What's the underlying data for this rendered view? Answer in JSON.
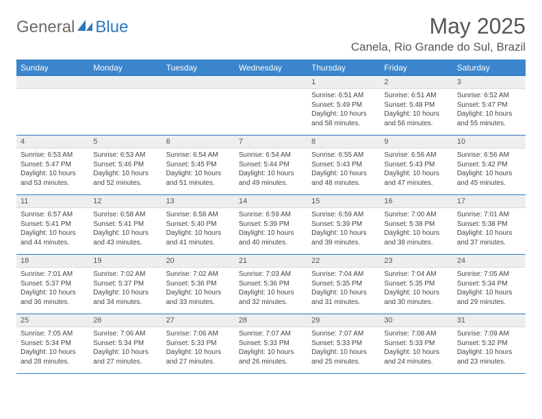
{
  "logo": {
    "part1": "General",
    "part2": "Blue"
  },
  "title": "May 2025",
  "location": "Canela, Rio Grande do Sul, Brazil",
  "colors": {
    "header_bg": "#3a85cc",
    "header_border": "#2b77c0",
    "daynum_bg": "#eceef0",
    "text": "#555555",
    "body_text": "#444444",
    "logo_gray": "#6a6a6a",
    "logo_blue": "#2b77c0"
  },
  "weekdays": [
    "Sunday",
    "Monday",
    "Tuesday",
    "Wednesday",
    "Thursday",
    "Friday",
    "Saturday"
  ],
  "weeks": [
    [
      null,
      null,
      null,
      null,
      {
        "n": "1",
        "sr": "6:51 AM",
        "ss": "5:49 PM",
        "dl": "10 hours and 58 minutes."
      },
      {
        "n": "2",
        "sr": "6:51 AM",
        "ss": "5:48 PM",
        "dl": "10 hours and 56 minutes."
      },
      {
        "n": "3",
        "sr": "6:52 AM",
        "ss": "5:47 PM",
        "dl": "10 hours and 55 minutes."
      }
    ],
    [
      {
        "n": "4",
        "sr": "6:53 AM",
        "ss": "5:47 PM",
        "dl": "10 hours and 53 minutes."
      },
      {
        "n": "5",
        "sr": "6:53 AM",
        "ss": "5:46 PM",
        "dl": "10 hours and 52 minutes."
      },
      {
        "n": "6",
        "sr": "6:54 AM",
        "ss": "5:45 PM",
        "dl": "10 hours and 51 minutes."
      },
      {
        "n": "7",
        "sr": "6:54 AM",
        "ss": "5:44 PM",
        "dl": "10 hours and 49 minutes."
      },
      {
        "n": "8",
        "sr": "6:55 AM",
        "ss": "5:43 PM",
        "dl": "10 hours and 48 minutes."
      },
      {
        "n": "9",
        "sr": "6:56 AM",
        "ss": "5:43 PM",
        "dl": "10 hours and 47 minutes."
      },
      {
        "n": "10",
        "sr": "6:56 AM",
        "ss": "5:42 PM",
        "dl": "10 hours and 45 minutes."
      }
    ],
    [
      {
        "n": "11",
        "sr": "6:57 AM",
        "ss": "5:41 PM",
        "dl": "10 hours and 44 minutes."
      },
      {
        "n": "12",
        "sr": "6:58 AM",
        "ss": "5:41 PM",
        "dl": "10 hours and 43 minutes."
      },
      {
        "n": "13",
        "sr": "6:58 AM",
        "ss": "5:40 PM",
        "dl": "10 hours and 41 minutes."
      },
      {
        "n": "14",
        "sr": "6:59 AM",
        "ss": "5:39 PM",
        "dl": "10 hours and 40 minutes."
      },
      {
        "n": "15",
        "sr": "6:59 AM",
        "ss": "5:39 PM",
        "dl": "10 hours and 39 minutes."
      },
      {
        "n": "16",
        "sr": "7:00 AM",
        "ss": "5:38 PM",
        "dl": "10 hours and 38 minutes."
      },
      {
        "n": "17",
        "sr": "7:01 AM",
        "ss": "5:38 PM",
        "dl": "10 hours and 37 minutes."
      }
    ],
    [
      {
        "n": "18",
        "sr": "7:01 AM",
        "ss": "5:37 PM",
        "dl": "10 hours and 36 minutes."
      },
      {
        "n": "19",
        "sr": "7:02 AM",
        "ss": "5:37 PM",
        "dl": "10 hours and 34 minutes."
      },
      {
        "n": "20",
        "sr": "7:02 AM",
        "ss": "5:36 PM",
        "dl": "10 hours and 33 minutes."
      },
      {
        "n": "21",
        "sr": "7:03 AM",
        "ss": "5:36 PM",
        "dl": "10 hours and 32 minutes."
      },
      {
        "n": "22",
        "sr": "7:04 AM",
        "ss": "5:35 PM",
        "dl": "10 hours and 31 minutes."
      },
      {
        "n": "23",
        "sr": "7:04 AM",
        "ss": "5:35 PM",
        "dl": "10 hours and 30 minutes."
      },
      {
        "n": "24",
        "sr": "7:05 AM",
        "ss": "5:34 PM",
        "dl": "10 hours and 29 minutes."
      }
    ],
    [
      {
        "n": "25",
        "sr": "7:05 AM",
        "ss": "5:34 PM",
        "dl": "10 hours and 28 minutes."
      },
      {
        "n": "26",
        "sr": "7:06 AM",
        "ss": "5:34 PM",
        "dl": "10 hours and 27 minutes."
      },
      {
        "n": "27",
        "sr": "7:06 AM",
        "ss": "5:33 PM",
        "dl": "10 hours and 27 minutes."
      },
      {
        "n": "28",
        "sr": "7:07 AM",
        "ss": "5:33 PM",
        "dl": "10 hours and 26 minutes."
      },
      {
        "n": "29",
        "sr": "7:07 AM",
        "ss": "5:33 PM",
        "dl": "10 hours and 25 minutes."
      },
      {
        "n": "30",
        "sr": "7:08 AM",
        "ss": "5:33 PM",
        "dl": "10 hours and 24 minutes."
      },
      {
        "n": "31",
        "sr": "7:09 AM",
        "ss": "5:32 PM",
        "dl": "10 hours and 23 minutes."
      }
    ]
  ],
  "labels": {
    "sunrise": "Sunrise:",
    "sunset": "Sunset:",
    "daylight": "Daylight:"
  }
}
